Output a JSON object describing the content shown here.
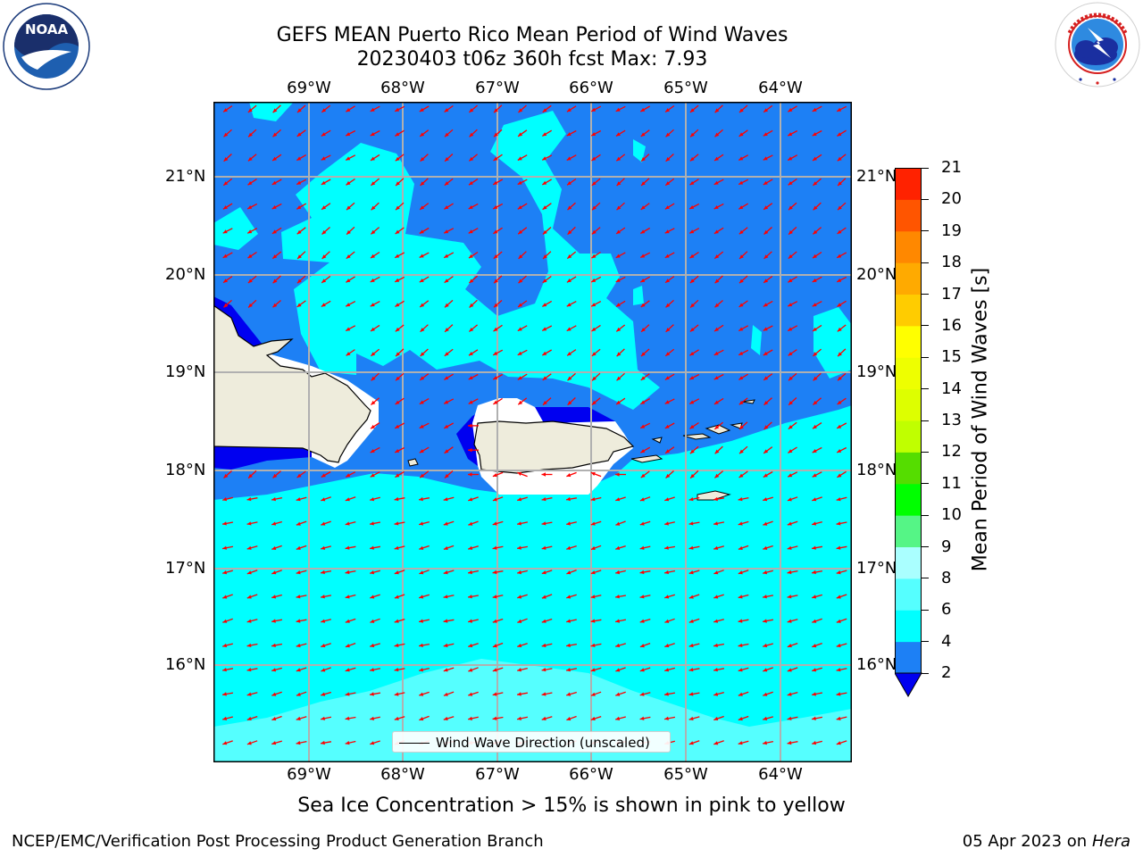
{
  "header": {
    "title_line1": "GEFS MEAN Puerto Rico Mean Period of Wind Waves",
    "title_line2": "20230403 t06z 360h fcst   Max: 7.93"
  },
  "logos": {
    "noaa_text": "NOAA",
    "noaa_ring_text": "NATIONAL OCEANIC AND ATMOSPHERIC ADMINISTRATION · U.S. DEPARTMENT OF COMMERCE",
    "nws_ring_text": "NATIONAL WEATHER SERVICE"
  },
  "map": {
    "lon_labels": [
      "69°W",
      "68°W",
      "67°W",
      "66°W",
      "65°W",
      "64°W"
    ],
    "lat_labels": [
      "21°N",
      "20°N",
      "19°N",
      "18°N",
      "17°N",
      "16°N"
    ],
    "legend_label": "Wind Wave Direction (unscaled)",
    "colors": {
      "land": "#eeecdc",
      "band_2_4": "#1d80f5",
      "band_4_6": "#00ffff",
      "band_6_8": "#55ffff",
      "band_lt_2": "#0000f0",
      "arrow": "#ff0000",
      "grid": "#b0b0b0"
    }
  },
  "colorbar": {
    "title": "Mean Period of Wind Waves [s]",
    "ticks": [
      "2",
      "4",
      "6",
      "8",
      "9",
      "10",
      "11",
      "12",
      "13",
      "14",
      "15",
      "16",
      "17",
      "18",
      "19",
      "20",
      "21"
    ],
    "segments": [
      {
        "from": 2,
        "to": 4,
        "color": "#1d80f5"
      },
      {
        "from": 4,
        "to": 6,
        "color": "#00ffff"
      },
      {
        "from": 6,
        "to": 8,
        "color": "#55ffff"
      },
      {
        "from": 8,
        "to": 9,
        "color": "#aaffff"
      },
      {
        "from": 9,
        "to": 10,
        "color": "#55f586"
      },
      {
        "from": 10,
        "to": 11,
        "color": "#00ff00"
      },
      {
        "from": 11,
        "to": 12,
        "color": "#55dd00"
      },
      {
        "from": 12,
        "to": 13,
        "color": "#c0ff00"
      },
      {
        "from": 13,
        "to": 14,
        "color": "#ddff00"
      },
      {
        "from": 14,
        "to": 15,
        "color": "#eeff00"
      },
      {
        "from": 15,
        "to": 16,
        "color": "#ffff00"
      },
      {
        "from": 16,
        "to": 17,
        "color": "#ffcc00"
      },
      {
        "from": 17,
        "to": 18,
        "color": "#ffaa00"
      },
      {
        "from": 18,
        "to": 19,
        "color": "#ff8800"
      },
      {
        "from": 19,
        "to": 20,
        "color": "#ff5500"
      },
      {
        "from": 20,
        "to": 21,
        "color": "#ff2200"
      }
    ],
    "below_min_color": "#0000f0"
  },
  "notes": {
    "sea_ice": "Sea Ice Concentration > 15% is shown in pink to yellow"
  },
  "footer": {
    "left": "NCEP/EMC/Verification Post Processing Product Generation Branch",
    "date": "05 Apr 2023 on",
    "machine": "Hera"
  }
}
